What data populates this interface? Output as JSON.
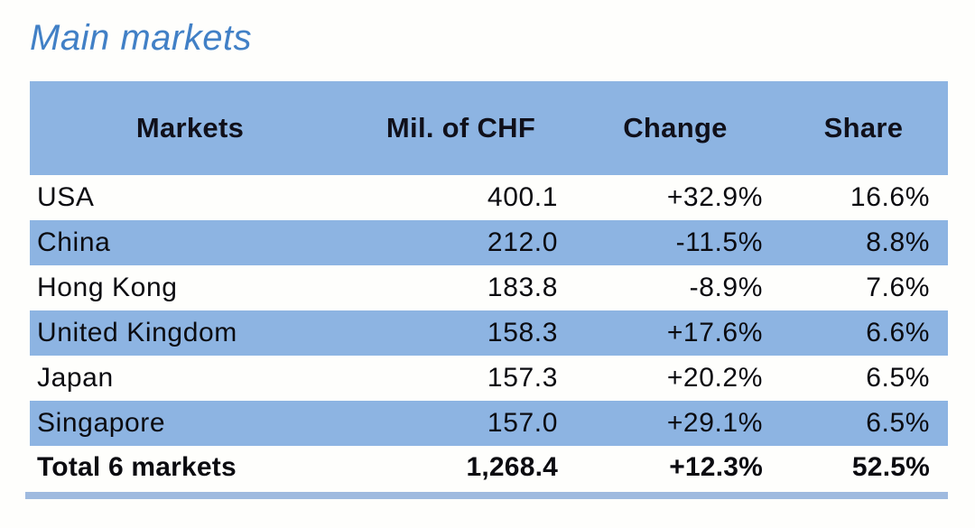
{
  "page": {
    "title": "Main markets"
  },
  "colors": {
    "accent_blue": "#8db4e2",
    "title_blue": "#4180c6",
    "bottom_bar_blue": "#9fbadf",
    "header_text": "#10101a",
    "body_text": "#0b0b10"
  },
  "chart_data": {
    "type": "table",
    "title": "Main markets",
    "columns": [
      "Markets",
      "Mil. of CHF",
      "Change",
      "Share"
    ],
    "rows": [
      [
        "USA",
        "400.1",
        "+32.9%",
        "16.6%"
      ],
      [
        "China",
        "212.0",
        "-11.5%",
        "8.8%"
      ],
      [
        "Hong Kong",
        "183.8",
        "-8.9%",
        "7.6%"
      ],
      [
        "United Kingdom",
        "158.3",
        "+17.6%",
        "6.6%"
      ],
      [
        "Japan",
        "157.3",
        "+20.2%",
        "6.5%"
      ],
      [
        "Singapore",
        "157.0",
        "+29.1%",
        "6.5%"
      ]
    ],
    "total_row": [
      "Total 6 markets",
      "1,268.4",
      "+12.3%",
      "52.5%"
    ],
    "layout": {
      "striped_rows": "alternating starting white",
      "header_background": "#8db4e2",
      "stripe_background": "#8db4e2",
      "numeric_alignment": "right",
      "header_alignment": "center"
    }
  }
}
